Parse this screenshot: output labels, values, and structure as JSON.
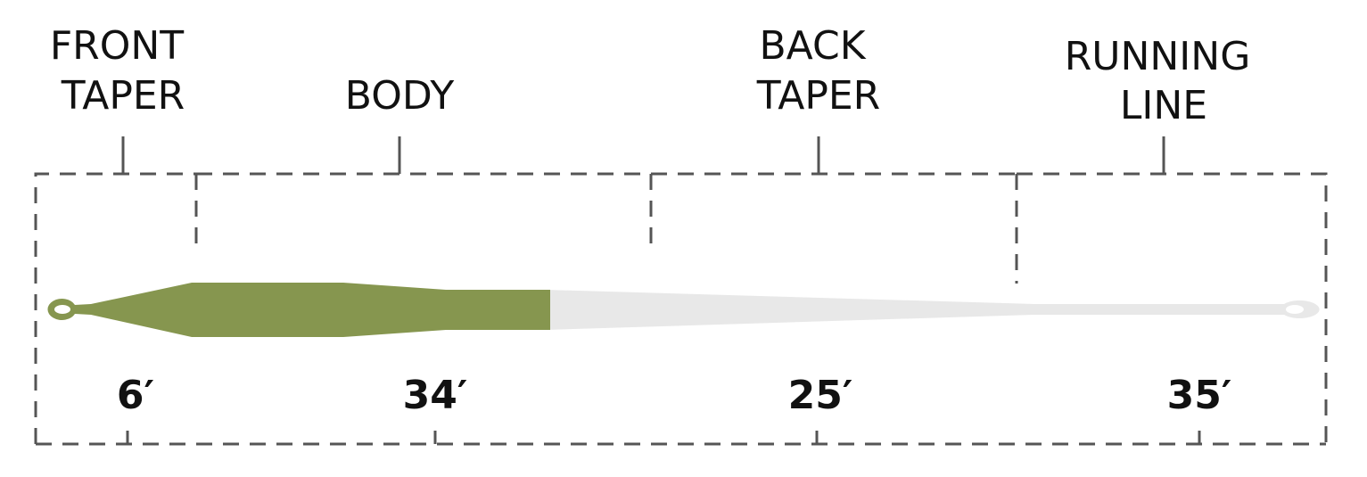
{
  "sections": [
    {
      "label_line1": "FRONT",
      "label_line2": "TAPER",
      "length": "6′"
    },
    {
      "label_line1": "",
      "label_line2": "BODY",
      "length": "34′"
    },
    {
      "label_line1": "BACK",
      "label_line2": "TAPER",
      "length": "25′"
    },
    {
      "label_line1": "RUNNING",
      "label_line2": "LINE",
      "length": "35′"
    }
  ],
  "colors": {
    "head": "#86964f",
    "running_line": "#e8e8e8",
    "bracket": "#555555",
    "text": "#111111"
  }
}
